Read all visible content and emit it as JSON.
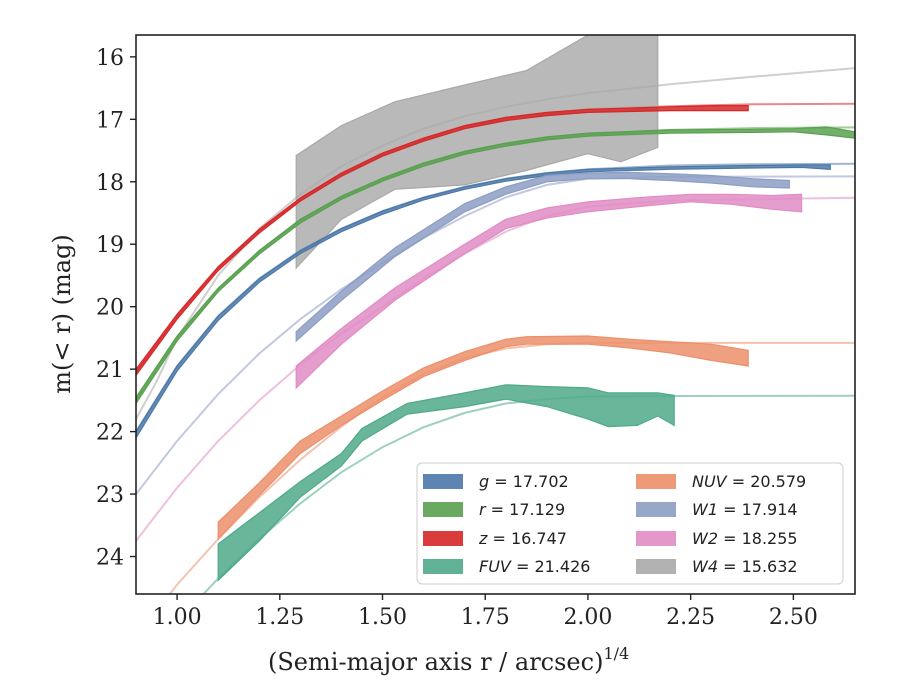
{
  "chart_data": {
    "type": "line",
    "xlabel": "(Semi-major axis r / arcsec)",
    "xlabel_exponent": "1/4",
    "ylabel": "m(< r) (mag)",
    "xlim": [
      0.9,
      2.65
    ],
    "ylim": [
      24.6,
      15.65
    ],
    "y_inverted": true,
    "x_ticks": [
      "1.00",
      "1.25",
      "1.50",
      "1.75",
      "2.00",
      "2.25",
      "2.50"
    ],
    "x_tick_values": [
      1.0,
      1.25,
      1.5,
      1.75,
      2.0,
      2.25,
      2.5
    ],
    "y_ticks": [
      "16",
      "17",
      "18",
      "19",
      "20",
      "21",
      "22",
      "23",
      "24"
    ],
    "y_tick_values": [
      16,
      17,
      18,
      19,
      20,
      21,
      22,
      23,
      24
    ],
    "grid": false,
    "legend_position": "lower-right",
    "legend_columns": 2,
    "series": [
      {
        "name": "g",
        "label_value": "17.702",
        "color": "#4c78a8",
        "model": [
          [
            0.9,
            22.0
          ],
          [
            1.0,
            20.95
          ],
          [
            1.1,
            20.15
          ],
          [
            1.2,
            19.55
          ],
          [
            1.3,
            19.1
          ],
          [
            1.4,
            18.75
          ],
          [
            1.5,
            18.47
          ],
          [
            1.6,
            18.25
          ],
          [
            1.7,
            18.08
          ],
          [
            1.8,
            17.95
          ],
          [
            1.9,
            17.86
          ],
          [
            2.0,
            17.8
          ],
          [
            2.2,
            17.74
          ],
          [
            2.4,
            17.72
          ],
          [
            2.65,
            17.71
          ]
        ],
        "band": [
          [
            0.9,
            22.0,
            22.1
          ],
          [
            1.0,
            20.95,
            21.03
          ],
          [
            1.1,
            20.15,
            20.22
          ],
          [
            1.2,
            19.55,
            19.61
          ],
          [
            1.3,
            19.1,
            19.15
          ],
          [
            1.4,
            18.75,
            18.8
          ],
          [
            1.5,
            18.47,
            18.52
          ],
          [
            1.6,
            18.25,
            18.29
          ],
          [
            1.7,
            18.08,
            18.12
          ],
          [
            1.8,
            17.95,
            17.99
          ],
          [
            1.9,
            17.86,
            17.9
          ],
          [
            2.0,
            17.8,
            17.84
          ],
          [
            2.2,
            17.76,
            17.8
          ],
          [
            2.4,
            17.74,
            17.78
          ],
          [
            2.52,
            17.73,
            17.77
          ],
          [
            2.59,
            17.73,
            17.8
          ]
        ]
      },
      {
        "name": "r",
        "label_value": "17.129",
        "color": "#59a14f",
        "model": [
          [
            0.9,
            21.5
          ],
          [
            1.0,
            20.5
          ],
          [
            1.1,
            19.72
          ],
          [
            1.2,
            19.12
          ],
          [
            1.3,
            18.62
          ],
          [
            1.4,
            18.25
          ],
          [
            1.5,
            17.96
          ],
          [
            1.6,
            17.72
          ],
          [
            1.7,
            17.53
          ],
          [
            1.8,
            17.4
          ],
          [
            1.9,
            17.3
          ],
          [
            2.0,
            17.24
          ],
          [
            2.2,
            17.17
          ],
          [
            2.4,
            17.14
          ],
          [
            2.65,
            17.13
          ]
        ],
        "band": [
          [
            0.9,
            21.45,
            21.55
          ],
          [
            1.0,
            20.47,
            20.55
          ],
          [
            1.1,
            19.7,
            19.76
          ],
          [
            1.2,
            19.1,
            19.16
          ],
          [
            1.3,
            18.6,
            18.66
          ],
          [
            1.4,
            18.23,
            18.28
          ],
          [
            1.5,
            17.94,
            17.99
          ],
          [
            1.6,
            17.7,
            17.75
          ],
          [
            1.7,
            17.51,
            17.56
          ],
          [
            1.8,
            17.38,
            17.43
          ],
          [
            1.9,
            17.28,
            17.33
          ],
          [
            2.0,
            17.22,
            17.27
          ],
          [
            2.2,
            17.17,
            17.22
          ],
          [
            2.4,
            17.16,
            17.21
          ],
          [
            2.5,
            17.15,
            17.2
          ],
          [
            2.58,
            17.12,
            17.25
          ],
          [
            2.65,
            17.2,
            17.3
          ]
        ]
      },
      {
        "name": "z",
        "label_value": "16.747",
        "color": "#d62728",
        "model": [
          [
            0.9,
            21.05
          ],
          [
            1.0,
            20.15
          ],
          [
            1.1,
            19.38
          ],
          [
            1.2,
            18.78
          ],
          [
            1.3,
            18.28
          ],
          [
            1.4,
            17.88
          ],
          [
            1.5,
            17.56
          ],
          [
            1.6,
            17.32
          ],
          [
            1.7,
            17.12
          ],
          [
            1.8,
            16.98
          ],
          [
            1.9,
            16.9
          ],
          [
            2.0,
            16.84
          ],
          [
            2.2,
            16.79
          ],
          [
            2.4,
            16.76
          ],
          [
            2.65,
            16.75
          ]
        ],
        "band": [
          [
            0.9,
            21.0,
            21.1
          ],
          [
            1.0,
            20.12,
            20.2
          ],
          [
            1.1,
            19.36,
            19.42
          ],
          [
            1.2,
            18.76,
            18.82
          ],
          [
            1.3,
            18.26,
            18.31
          ],
          [
            1.4,
            17.86,
            17.91
          ],
          [
            1.5,
            17.54,
            17.59
          ],
          [
            1.6,
            17.3,
            17.35
          ],
          [
            1.7,
            17.1,
            17.15
          ],
          [
            1.8,
            16.97,
            17.02
          ],
          [
            1.9,
            16.89,
            16.94
          ],
          [
            2.0,
            16.84,
            16.89
          ],
          [
            2.2,
            16.8,
            16.86
          ],
          [
            2.3,
            16.78,
            16.86
          ],
          [
            2.39,
            16.78,
            16.86
          ]
        ]
      },
      {
        "name": "FUV",
        "label_value": "21.426",
        "color": "#4fa98a",
        "model": [
          [
            0.9,
            25.8
          ],
          [
            1.0,
            25.05
          ],
          [
            1.1,
            24.35
          ],
          [
            1.2,
            23.72
          ],
          [
            1.3,
            23.15
          ],
          [
            1.4,
            22.65
          ],
          [
            1.5,
            22.25
          ],
          [
            1.6,
            21.93
          ],
          [
            1.7,
            21.7
          ],
          [
            1.8,
            21.55
          ],
          [
            1.9,
            21.48
          ],
          [
            2.0,
            21.44
          ],
          [
            2.2,
            21.43
          ],
          [
            2.65,
            21.426
          ]
        ],
        "band": [
          [
            1.1,
            23.8,
            24.38
          ],
          [
            1.2,
            23.3,
            23.75
          ],
          [
            1.3,
            22.8,
            23.05
          ],
          [
            1.4,
            22.35,
            22.55
          ],
          [
            1.45,
            21.95,
            22.15
          ],
          [
            1.56,
            21.55,
            21.72
          ],
          [
            1.7,
            21.38,
            21.6
          ],
          [
            1.8,
            21.25,
            21.48
          ],
          [
            1.9,
            21.28,
            21.6
          ],
          [
            2.0,
            21.3,
            21.8
          ],
          [
            2.05,
            21.38,
            21.92
          ],
          [
            2.12,
            21.38,
            21.9
          ],
          [
            2.17,
            21.38,
            21.75
          ],
          [
            2.21,
            21.42,
            21.9
          ]
        ]
      },
      {
        "name": "NUV",
        "label_value": "20.579",
        "color": "#ec8f6a",
        "model": [
          [
            0.9,
            25.3
          ],
          [
            1.0,
            24.45
          ],
          [
            1.1,
            23.72
          ],
          [
            1.2,
            23.05
          ],
          [
            1.3,
            22.45
          ],
          [
            1.4,
            21.92
          ],
          [
            1.5,
            21.45
          ],
          [
            1.6,
            21.08
          ],
          [
            1.7,
            20.82
          ],
          [
            1.8,
            20.67
          ],
          [
            1.9,
            20.6
          ],
          [
            2.0,
            20.58
          ],
          [
            2.2,
            20.579
          ],
          [
            2.65,
            20.579
          ]
        ],
        "band": [
          [
            1.1,
            23.45,
            23.72
          ],
          [
            1.2,
            22.82,
            23.02
          ],
          [
            1.3,
            22.15,
            22.35
          ],
          [
            1.4,
            21.75,
            21.9
          ],
          [
            1.5,
            21.35,
            21.5
          ],
          [
            1.6,
            20.98,
            21.12
          ],
          [
            1.7,
            20.72,
            20.86
          ],
          [
            1.8,
            20.52,
            20.64
          ],
          [
            1.85,
            20.48,
            20.6
          ],
          [
            2.0,
            20.47,
            20.6
          ],
          [
            2.1,
            20.52,
            20.66
          ],
          [
            2.2,
            20.56,
            20.74
          ],
          [
            2.3,
            20.6,
            20.86
          ],
          [
            2.39,
            20.7,
            20.95
          ]
        ]
      },
      {
        "name": "W1",
        "label_value": "17.914",
        "color": "#8c9dc4",
        "model": [
          [
            0.9,
            23.0
          ],
          [
            1.0,
            22.15
          ],
          [
            1.1,
            21.4
          ],
          [
            1.2,
            20.75
          ],
          [
            1.3,
            20.2
          ],
          [
            1.4,
            19.72
          ],
          [
            1.5,
            19.3
          ],
          [
            1.6,
            18.9
          ],
          [
            1.7,
            18.55
          ],
          [
            1.8,
            18.25
          ],
          [
            1.9,
            18.05
          ],
          [
            2.0,
            17.95
          ],
          [
            2.2,
            17.92
          ],
          [
            2.65,
            17.914
          ]
        ],
        "band": [
          [
            1.29,
            20.4,
            20.55
          ],
          [
            1.4,
            19.75,
            19.9
          ],
          [
            1.53,
            19.06,
            19.2
          ],
          [
            1.7,
            18.35,
            18.48
          ],
          [
            1.8,
            18.08,
            18.2
          ],
          [
            1.9,
            17.9,
            18.0
          ],
          [
            2.0,
            17.86,
            17.95
          ],
          [
            2.1,
            17.85,
            17.95
          ],
          [
            2.2,
            17.87,
            17.98
          ],
          [
            2.3,
            17.9,
            18.02
          ],
          [
            2.4,
            17.95,
            18.08
          ],
          [
            2.49,
            17.98,
            18.1
          ]
        ]
      },
      {
        "name": "W2",
        "label_value": "18.255",
        "color": "#e08cc4",
        "model": [
          [
            0.9,
            23.75
          ],
          [
            1.0,
            22.9
          ],
          [
            1.1,
            22.15
          ],
          [
            1.2,
            21.5
          ],
          [
            1.3,
            20.93
          ],
          [
            1.4,
            20.43
          ],
          [
            1.5,
            20.0
          ],
          [
            1.6,
            19.55
          ],
          [
            1.7,
            19.15
          ],
          [
            1.8,
            18.8
          ],
          [
            1.9,
            18.55
          ],
          [
            2.0,
            18.4
          ],
          [
            2.2,
            18.3
          ],
          [
            2.65,
            18.255
          ]
        ],
        "band": [
          [
            1.29,
            20.95,
            21.3
          ],
          [
            1.4,
            20.35,
            20.6
          ],
          [
            1.53,
            19.7,
            19.9
          ],
          [
            1.7,
            19.0,
            19.15
          ],
          [
            1.8,
            18.6,
            18.75
          ],
          [
            1.9,
            18.42,
            18.58
          ],
          [
            2.0,
            18.32,
            18.48
          ],
          [
            2.15,
            18.24,
            18.38
          ],
          [
            2.25,
            18.2,
            18.32
          ],
          [
            2.35,
            18.2,
            18.36
          ],
          [
            2.45,
            18.22,
            18.44
          ],
          [
            2.52,
            18.2,
            18.48
          ]
        ]
      },
      {
        "name": "W4",
        "label_value": "15.632",
        "color": "#a8a8a8",
        "model": [
          [
            0.9,
            21.8
          ],
          [
            0.95,
            21.2
          ],
          [
            1.0,
            20.5
          ],
          [
            1.1,
            19.5
          ],
          [
            1.2,
            18.75
          ],
          [
            1.3,
            18.2
          ],
          [
            1.4,
            17.75
          ],
          [
            1.5,
            17.42
          ],
          [
            1.6,
            17.15
          ],
          [
            1.7,
            16.95
          ],
          [
            1.8,
            16.8
          ],
          [
            1.9,
            16.68
          ],
          [
            2.0,
            16.58
          ],
          [
            2.2,
            16.44
          ],
          [
            2.4,
            16.32
          ],
          [
            2.65,
            16.18
          ]
        ],
        "band": [
          [
            1.29,
            17.58,
            19.38
          ],
          [
            1.4,
            17.1,
            18.6
          ],
          [
            1.53,
            16.72,
            18.12
          ],
          [
            1.7,
            16.45,
            18.05
          ],
          [
            1.85,
            16.22,
            17.82
          ],
          [
            2.0,
            15.65,
            17.55
          ],
          [
            2.08,
            15.65,
            17.68
          ],
          [
            2.17,
            15.65,
            17.45
          ]
        ]
      }
    ]
  }
}
